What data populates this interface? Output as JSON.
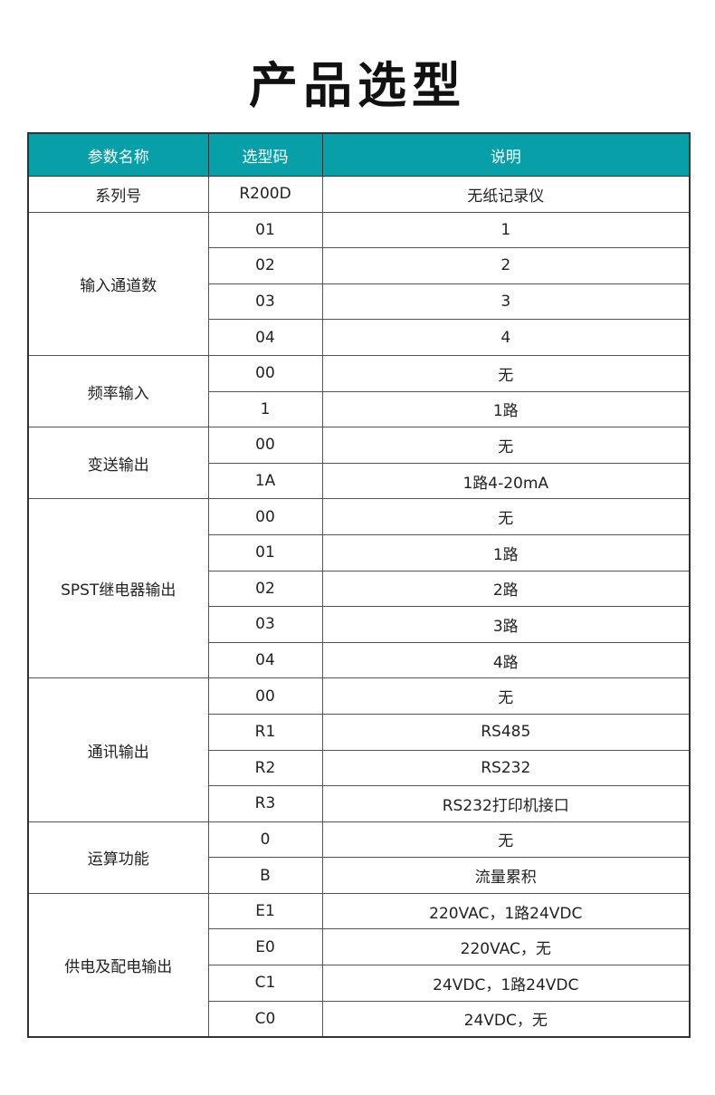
{
  "title": "产品选型",
  "headers": [
    "参数名称",
    "选型码",
    "说明"
  ],
  "colors": {
    "header_bg": "#08a0a8",
    "header_text": "#ffffff"
  },
  "groups": [
    {
      "name": "系列号",
      "rows": [
        [
          "R200D",
          "无纸记录仪"
        ]
      ]
    },
    {
      "name": "输入通道数",
      "rows": [
        [
          "01",
          "1"
        ],
        [
          "02",
          "2"
        ],
        [
          "03",
          "3"
        ],
        [
          "04",
          "4"
        ]
      ]
    },
    {
      "name": "频率输入",
      "rows": [
        [
          "00",
          "无"
        ],
        [
          "1",
          "1路"
        ]
      ]
    },
    {
      "name": "变送输出",
      "rows": [
        [
          "00",
          "无"
        ],
        [
          "1A",
          "1路4-20mA"
        ]
      ]
    },
    {
      "name": "SPST继电器输出",
      "rows": [
        [
          "00",
          "无"
        ],
        [
          "01",
          "1路"
        ],
        [
          "02",
          "2路"
        ],
        [
          "03",
          "3路"
        ],
        [
          "04",
          "4路"
        ]
      ]
    },
    {
      "name": "通讯输出",
      "rows": [
        [
          "00",
          "无"
        ],
        [
          "R1",
          "RS485"
        ],
        [
          "R2",
          "RS232"
        ],
        [
          "R3",
          "RS232打印机接口"
        ]
      ]
    },
    {
      "name": "运算功能",
      "rows": [
        [
          "0",
          "无"
        ],
        [
          "B",
          "流量累积"
        ]
      ]
    },
    {
      "name": "供电及配电输出",
      "rows": [
        [
          "E1",
          "220VAC，1路24VDC"
        ],
        [
          "E0",
          "220VAC，无"
        ],
        [
          "C1",
          "24VDC，1路24VDC"
        ],
        [
          "C0",
          "24VDC，无"
        ]
      ]
    }
  ]
}
